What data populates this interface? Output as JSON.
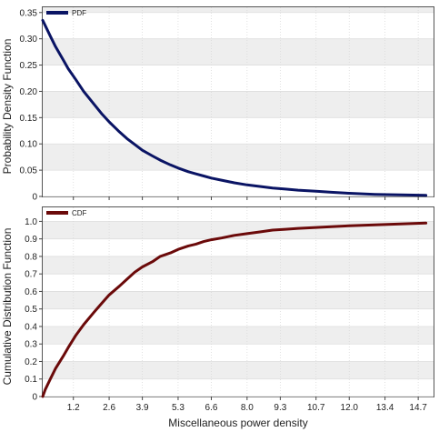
{
  "chart_data": [
    {
      "type": "line",
      "ylabel": "Probability Density Function",
      "xlabel": "",
      "xlim": [
        0,
        15.3
      ],
      "ylim": [
        0,
        0.36
      ],
      "yticks": [
        "0",
        "0.05",
        "0.10",
        "0.15",
        "0.20",
        "0.25",
        "0.30",
        "0.35"
      ],
      "grid": true,
      "legend_position": "top-left",
      "series": [
        {
          "name": "PDF",
          "color": "#0a1464",
          "x": [
            0,
            0.1,
            0.3,
            0.5,
            0.8,
            1.0,
            1.3,
            1.6,
            2.0,
            2.3,
            2.6,
            3.0,
            3.3,
            3.6,
            3.9,
            4.3,
            4.6,
            5.0,
            5.3,
            5.7,
            6.0,
            6.3,
            6.6,
            7.0,
            7.5,
            8.0,
            8.5,
            9.0,
            9.5,
            10.0,
            10.7,
            11.3,
            12.0,
            13.0,
            14.0,
            15.0
          ],
          "values": [
            0.335,
            0.325,
            0.305,
            0.285,
            0.26,
            0.243,
            0.222,
            0.2,
            0.176,
            0.158,
            0.142,
            0.123,
            0.11,
            0.099,
            0.088,
            0.077,
            0.069,
            0.06,
            0.054,
            0.047,
            0.043,
            0.039,
            0.035,
            0.031,
            0.026,
            0.022,
            0.019,
            0.016,
            0.014,
            0.012,
            0.01,
            0.008,
            0.006,
            0.004,
            0.003,
            0.002
          ]
        }
      ]
    },
    {
      "type": "line",
      "ylabel": "Cumulative Distribution Function",
      "xlabel": "Miscellaneous power density",
      "xlim": [
        0,
        15.3
      ],
      "ylim": [
        0,
        1.08
      ],
      "yticks": [
        "0",
        "0.1",
        "0.2",
        "0.3",
        "0.4",
        "0.5",
        "0.6",
        "0.7",
        "0.8",
        "0.9",
        "1.0"
      ],
      "xticks": [
        "1.2",
        "2.6",
        "3.9",
        "5.3",
        "6.6",
        "8.0",
        "9.3",
        "10.7",
        "12.0",
        "13.4",
        "14.7"
      ],
      "grid": true,
      "legend_position": "top-left",
      "series": [
        {
          "name": "CDF",
          "color": "#6b0a0a",
          "x": [
            0,
            0.1,
            0.3,
            0.5,
            0.8,
            1.0,
            1.3,
            1.6,
            2.0,
            2.3,
            2.6,
            3.0,
            3.3,
            3.6,
            3.9,
            4.3,
            4.6,
            5.0,
            5.3,
            5.7,
            6.0,
            6.3,
            6.6,
            7.0,
            7.5,
            8.0,
            8.5,
            9.0,
            9.5,
            10.0,
            10.7,
            11.3,
            12.0,
            13.0,
            14.0,
            15.0
          ],
          "values": [
            0.0,
            0.04,
            0.1,
            0.16,
            0.23,
            0.28,
            0.35,
            0.41,
            0.48,
            0.53,
            0.58,
            0.63,
            0.67,
            0.71,
            0.74,
            0.77,
            0.8,
            0.82,
            0.84,
            0.86,
            0.87,
            0.885,
            0.895,
            0.905,
            0.92,
            0.93,
            0.94,
            0.95,
            0.955,
            0.96,
            0.965,
            0.97,
            0.975,
            0.98,
            0.985,
            0.99
          ]
        }
      ]
    }
  ]
}
